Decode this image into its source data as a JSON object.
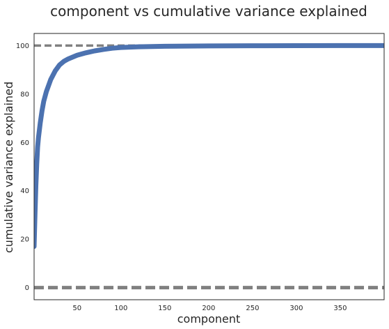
{
  "chart_data": {
    "type": "line",
    "title": "component vs cumulative variance explained",
    "xlabel": "component",
    "ylabel": "cumulative variance explained",
    "xlim": [
      1,
      400
    ],
    "ylim": [
      -5,
      105
    ],
    "x_ticks": [
      50,
      100,
      150,
      200,
      250,
      300,
      350
    ],
    "y_ticks": [
      0,
      20,
      40,
      60,
      80,
      100
    ],
    "grid": false,
    "legend": "none",
    "series": [
      {
        "color": "#4c72b0",
        "x": [
          1,
          2,
          3,
          4,
          5,
          6,
          8,
          10,
          12,
          15,
          18,
          20,
          25,
          30,
          35,
          40,
          50,
          60,
          70,
          80,
          90,
          100,
          120,
          150,
          200,
          250,
          300,
          350,
          400
        ],
        "y": [
          17,
          30,
          42,
          51,
          58,
          62,
          68,
          73,
          77,
          81,
          84,
          86,
          89.5,
          92,
          93.5,
          94.5,
          96,
          97,
          97.8,
          98.4,
          98.9,
          99.2,
          99.5,
          99.7,
          99.85,
          99.92,
          99.96,
          99.98,
          100
        ]
      }
    ],
    "reference_lines": [
      {
        "y": 100,
        "color": "#808080",
        "style": "dashed"
      },
      {
        "y": 0,
        "color": "#808080",
        "style": "dashed"
      }
    ]
  }
}
